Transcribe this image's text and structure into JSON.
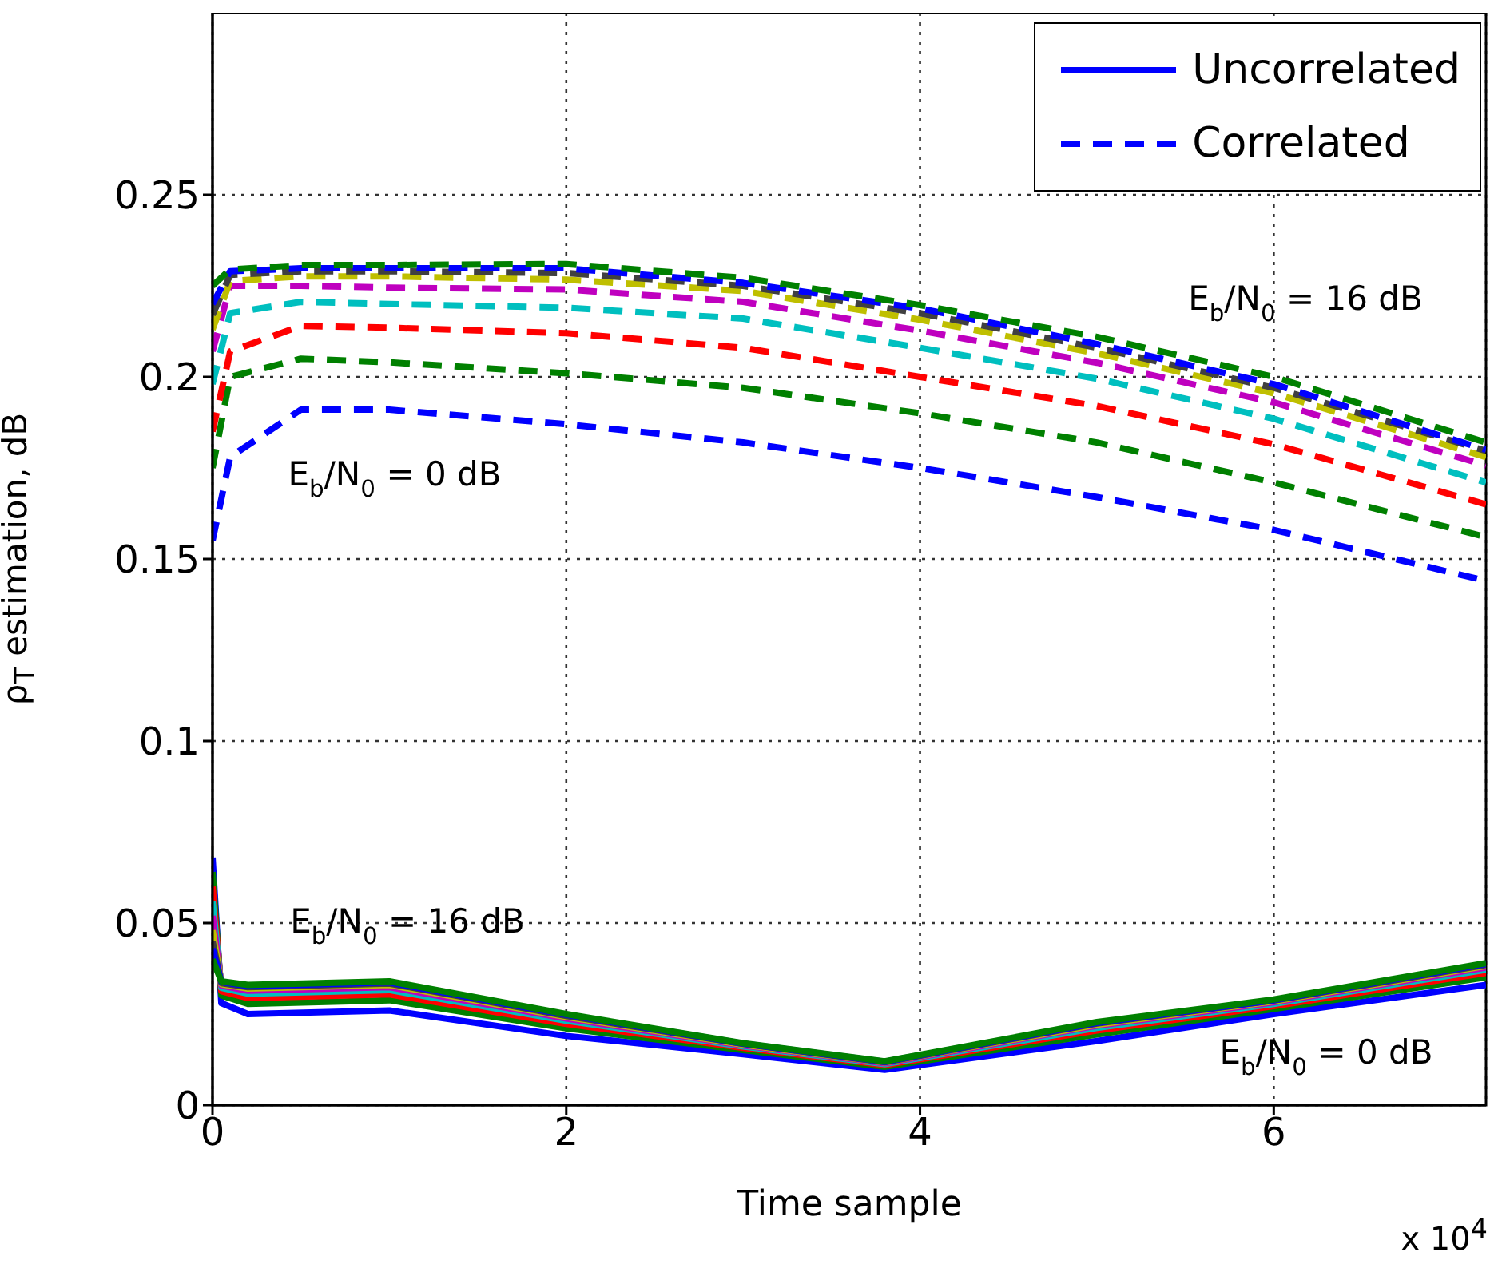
{
  "chart_data": {
    "type": "line",
    "xlabel": "Time sample",
    "ylabel": "ρ$_{T}$ estimation, dB",
    "xlim": [
      0,
      7.2
    ],
    "xticks": [
      0,
      2,
      4,
      6
    ],
    "ylim": [
      0,
      0.3
    ],
    "yticks": [
      0,
      0.05,
      0.1,
      0.15,
      0.2,
      0.25
    ],
    "grid": true,
    "legend": "top right",
    "annotations": [
      "E$_{b}$/N$_{0}$ = 16 dB",
      "E$_{b}$/N$_{0}$ = 0 dB",
      "E$_{b}$/N$_{0}$ = 16 dB",
      "E$_{b}$/N$_{0}$ = 0 dB",
      "x 10$^{4}$"
    ],
    "series": [
      {
        "name": "Uncorrelated",
        "color": "#0000ff",
        "line_style": "solid",
        "x": [
          0,
          0.05,
          0.2,
          1,
          2,
          3,
          3.8,
          5,
          6,
          7.2
        ],
        "values": [
          0.068,
          0.028,
          0.025,
          0.026,
          0.019,
          0.014,
          0.0097,
          0.0176,
          0.025,
          0.033
        ]
      },
      {
        "color": "#008000",
        "line_style": "solid",
        "x": [
          0,
          0.05,
          0.2,
          1,
          2,
          3,
          3.8,
          5,
          6,
          7.2
        ],
        "values": [
          0.064,
          0.0301,
          0.0278,
          0.0288,
          0.0211,
          0.0151,
          0.0105,
          0.0194,
          0.0264,
          0.0351
        ]
      },
      {
        "color": "#ff0000",
        "line_style": "solid",
        "x": [
          0,
          0.05,
          0.2,
          1,
          2,
          3,
          3.8,
          5,
          6,
          7.2
        ],
        "values": [
          0.06,
          0.0313,
          0.0294,
          0.0304,
          0.0223,
          0.0157,
          0.011,
          0.0205,
          0.0272,
          0.0363
        ]
      },
      {
        "color": "#00bfbf",
        "line_style": "solid",
        "x": [
          0,
          0.05,
          0.2,
          1,
          2,
          3,
          3.8,
          5,
          6,
          7.2
        ],
        "values": [
          0.056,
          0.0322,
          0.0306,
          0.0316,
          0.0232,
          0.0161,
          0.0113,
          0.0212,
          0.0278,
          0.0372
        ]
      },
      {
        "color": "#bf00bf",
        "line_style": "solid",
        "x": [
          0,
          0.05,
          0.2,
          1,
          2,
          3,
          3.8,
          5,
          6,
          7.2
        ],
        "values": [
          0.052,
          0.0328,
          0.0314,
          0.0324,
          0.0238,
          0.0164,
          0.0115,
          0.0218,
          0.0282,
          0.0378
        ]
      },
      {
        "color": "#bfbf00",
        "line_style": "solid",
        "x": [
          0,
          0.05,
          0.2,
          1,
          2,
          3,
          3.8,
          5,
          6,
          7.2
        ],
        "values": [
          0.048,
          0.0332,
          0.032,
          0.033,
          0.0242,
          0.0166,
          0.0117,
          0.0221,
          0.0285,
          0.0382
        ]
      },
      {
        "color": "#404040",
        "line_style": "solid",
        "x": [
          0,
          0.05,
          0.2,
          1,
          2,
          3,
          3.8,
          5,
          6,
          7.2
        ],
        "values": [
          0.045,
          0.0335,
          0.0324,
          0.0334,
          0.0245,
          0.0168,
          0.0118,
          0.0224,
          0.0287,
          0.0385
        ]
      },
      {
        "color": "#0000ff",
        "line_style": "solid",
        "x": [
          0,
          0.05,
          0.2,
          1,
          2,
          3,
          3.8,
          5,
          6,
          7.2
        ],
        "values": [
          0.043,
          0.0338,
          0.0327,
          0.0337,
          0.0248,
          0.0169,
          0.0119,
          0.0226,
          0.0288,
          0.0388
        ]
      },
      {
        "color": "#008000",
        "line_style": "solid",
        "x": [
          0,
          0.05,
          0.2,
          1,
          2,
          3,
          3.8,
          5,
          6,
          7.2
        ],
        "values": [
          0.04,
          0.034,
          0.033,
          0.034,
          0.025,
          0.017,
          0.012,
          0.0228,
          0.029,
          0.039
        ]
      },
      {
        "name": "Correlated",
        "color": "#0000ff",
        "line_style": "dashed",
        "x": [
          0,
          0.1,
          0.5,
          1,
          2,
          3,
          4,
          5,
          6,
          7.2
        ],
        "values": [
          0.155,
          0.178,
          0.191,
          0.191,
          0.187,
          0.182,
          0.175,
          0.167,
          0.158,
          0.144
        ]
      },
      {
        "color": "#008000",
        "line_style": "dashed",
        "x": [
          0,
          0.1,
          0.5,
          1,
          2,
          3,
          4,
          5,
          6,
          7.2
        ],
        "values": [
          0.175,
          0.2,
          0.205,
          0.204,
          0.201,
          0.197,
          0.19,
          0.182,
          0.171,
          0.156
        ]
      },
      {
        "color": "#ff0000",
        "line_style": "dashed",
        "x": [
          0,
          0.1,
          0.5,
          1,
          2,
          3,
          4,
          5,
          6,
          7.2
        ],
        "values": [
          0.185,
          0.207,
          0.214,
          0.2135,
          0.212,
          0.208,
          0.2,
          0.192,
          0.1815,
          0.165
        ]
      },
      {
        "color": "#00bfbf",
        "line_style": "dashed",
        "x": [
          0,
          0.1,
          0.5,
          1,
          2,
          3,
          4,
          5,
          6,
          7.2
        ],
        "values": [
          0.198,
          0.2175,
          0.2206,
          0.22,
          0.219,
          0.216,
          0.208,
          0.1995,
          0.1885,
          0.171
        ]
      },
      {
        "color": "#bf00bf",
        "line_style": "dashed",
        "x": [
          0,
          0.1,
          0.5,
          1,
          2,
          3,
          4,
          5,
          6,
          7.2
        ],
        "values": [
          0.207,
          0.225,
          0.225,
          0.2245,
          0.224,
          0.2206,
          0.2127,
          0.2039,
          0.193,
          0.1757
        ]
      },
      {
        "color": "#bfbf00",
        "line_style": "dashed",
        "x": [
          0,
          0.1,
          0.5,
          1,
          2,
          3,
          4,
          5,
          6,
          7.2
        ],
        "values": [
          0.213,
          0.2263,
          0.2276,
          0.2276,
          0.2267,
          0.2236,
          0.2157,
          0.2065,
          0.1955,
          0.178
        ]
      },
      {
        "color": "#404040",
        "line_style": "dashed",
        "x": [
          0,
          0.1,
          0.5,
          1,
          2,
          3,
          4,
          5,
          6,
          7.2
        ],
        "values": [
          0.217,
          0.228,
          0.229,
          0.229,
          0.2285,
          0.225,
          0.2175,
          0.208,
          0.197,
          0.1797
        ]
      },
      {
        "color": "#0000ff",
        "line_style": "dashed",
        "x": [
          0,
          0.1,
          0.5,
          1,
          2,
          3,
          4,
          5,
          6,
          7.2
        ],
        "values": [
          0.22,
          0.229,
          0.2298,
          0.2298,
          0.2298,
          0.2258,
          0.2188,
          0.209,
          0.198,
          0.18
        ]
      },
      {
        "color": "#008000",
        "line_style": "dashed",
        "x": [
          0,
          0.1,
          0.5,
          1,
          2,
          3,
          4,
          5,
          6,
          7.2
        ],
        "values": [
          0.225,
          0.2295,
          0.2307,
          0.2307,
          0.231,
          0.2272,
          0.2197,
          0.211,
          0.2,
          0.182
        ]
      }
    ]
  }
}
